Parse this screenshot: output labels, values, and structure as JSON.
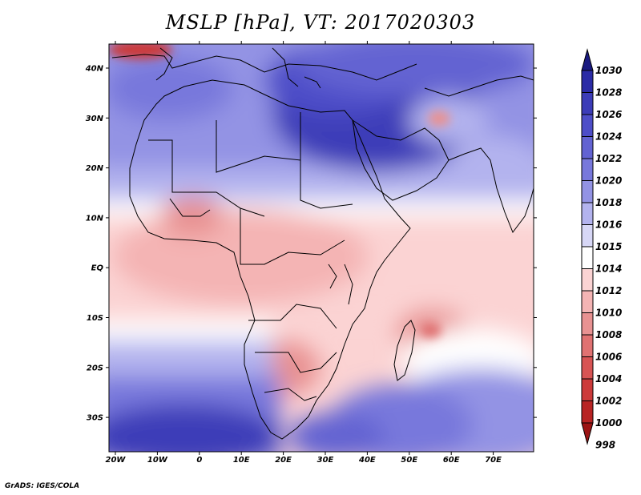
{
  "title": "MSLP [hPa], VT: 2017020303",
  "credit": "GrADS: IGES/COLA",
  "lon_ticks": [
    "20W",
    "10W",
    "0",
    "10E",
    "20E",
    "30E",
    "40E",
    "50E",
    "60E",
    "70E"
  ],
  "lat_ticks": [
    "40N",
    "30N",
    "20N",
    "10N",
    "EQ",
    "10S",
    "20S",
    "30S"
  ],
  "legend": {
    "levels": [
      "1030",
      "1028",
      "1026",
      "1024",
      "1022",
      "1020",
      "1018",
      "1016",
      "1015",
      "1014",
      "1012",
      "1010",
      "1008",
      "1006",
      "1004",
      "1002",
      "1000",
      "998"
    ],
    "colors": [
      "#1a1a80",
      "#2b2ba6",
      "#3c3cb8",
      "#4e4ec8",
      "#6363d2",
      "#7878dc",
      "#9393e4",
      "#b3b3ee",
      "#d7d7f6",
      "#ffffff",
      "#fbd3d3",
      "#f4b4b4",
      "#e89292",
      "#e07272",
      "#d85454",
      "#cc3a3a",
      "#b82424",
      "#9c1414"
    ]
  }
}
